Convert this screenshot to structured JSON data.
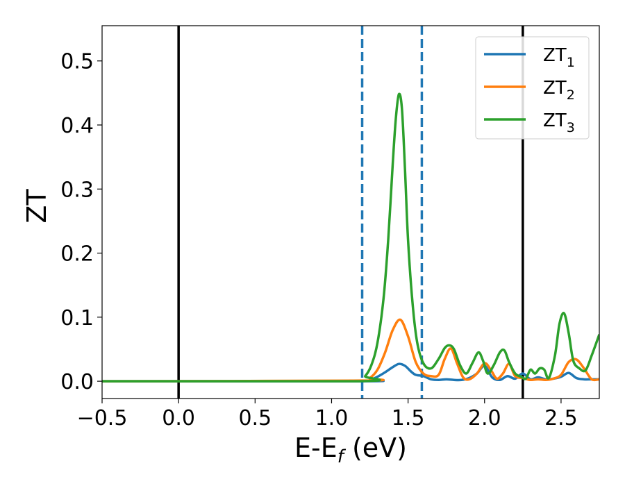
{
  "chart_data": {
    "type": "line",
    "xlabel": "E-E",
    "xlabel_sub": "f",
    "xlabel_units": " (eV)",
    "ylabel": "ZT",
    "xlim": [
      -0.5,
      2.75
    ],
    "ylim": [
      -0.027,
      0.555
    ],
    "xticks": [
      -0.5,
      0.0,
      0.5,
      1.0,
      1.5,
      2.0,
      2.5
    ],
    "xtick_labels": [
      "−0.5",
      "0.0",
      "0.5",
      "1.0",
      "1.5",
      "2.0",
      "2.5"
    ],
    "yticks": [
      0.0,
      0.1,
      0.2,
      0.3,
      0.4,
      0.5
    ],
    "ytick_labels": [
      "0.0",
      "0.1",
      "0.2",
      "0.3",
      "0.4",
      "0.5"
    ],
    "grid": false,
    "legend_position": "top-right",
    "reference_lines": [
      {
        "x": 0.0,
        "style": "solid",
        "color": "#000000"
      },
      {
        "x": 2.25,
        "style": "solid",
        "color": "#000000"
      },
      {
        "x": 1.2,
        "style": "dashed",
        "color": "#1f77b4"
      },
      {
        "x": 1.59,
        "style": "dashed",
        "color": "#1f77b4"
      }
    ],
    "series": [
      {
        "name": "ZT",
        "subscript": "1",
        "color": "#1f77b4",
        "x": [
          -0.5,
          1.2,
          1.25,
          1.3,
          1.35,
          1.4,
          1.44,
          1.48,
          1.52,
          1.55,
          1.6,
          1.65,
          1.7,
          1.75,
          1.8,
          1.85,
          1.9,
          1.95,
          2.0,
          2.05,
          2.1,
          2.15,
          2.2,
          2.25,
          2.3,
          2.35,
          2.4,
          2.45,
          2.5,
          2.55,
          2.6,
          2.65,
          2.7,
          2.75
        ],
        "y": [
          0.0,
          0.0,
          0.002,
          0.007,
          0.014,
          0.022,
          0.027,
          0.024,
          0.015,
          0.01,
          0.008,
          0.003,
          0.002,
          0.003,
          0.002,
          0.002,
          0.005,
          0.012,
          0.024,
          0.006,
          0.002,
          0.008,
          0.004,
          0.012,
          0.003,
          0.006,
          0.003,
          0.004,
          0.007,
          0.013,
          0.005,
          0.003,
          0.003,
          0.003
        ]
      },
      {
        "name": "ZT",
        "subscript": "2",
        "color": "#ff7f0e",
        "x": [
          -0.5,
          1.2,
          1.25,
          1.3,
          1.35,
          1.4,
          1.45,
          1.5,
          1.55,
          1.6,
          1.65,
          1.7,
          1.74,
          1.78,
          1.82,
          1.86,
          1.9,
          1.95,
          2.0,
          2.04,
          2.08,
          2.12,
          2.16,
          2.2,
          2.25,
          2.3,
          2.35,
          2.4,
          2.45,
          2.5,
          2.55,
          2.6,
          2.65,
          2.7,
          2.75
        ],
        "y": [
          0.0,
          0.001,
          0.005,
          0.018,
          0.045,
          0.08,
          0.096,
          0.07,
          0.03,
          0.012,
          0.008,
          0.01,
          0.035,
          0.051,
          0.028,
          0.006,
          0.003,
          0.012,
          0.028,
          0.018,
          0.004,
          0.012,
          0.027,
          0.008,
          0.005,
          0.002,
          0.003,
          0.002,
          0.004,
          0.01,
          0.03,
          0.034,
          0.02,
          0.003,
          0.003
        ]
      },
      {
        "name": "ZT",
        "subscript": "3",
        "color": "#2ca02c",
        "x": [
          -0.5,
          1.18,
          1.22,
          1.26,
          1.3,
          1.34,
          1.37,
          1.4,
          1.42,
          1.44,
          1.46,
          1.48,
          1.5,
          1.53,
          1.56,
          1.6,
          1.65,
          1.7,
          1.74,
          1.77,
          1.8,
          1.84,
          1.88,
          1.92,
          1.96,
          1.99,
          2.02,
          2.06,
          2.1,
          2.13,
          2.16,
          2.2,
          2.24,
          2.27,
          2.3,
          2.33,
          2.36,
          2.39,
          2.42,
          2.46,
          2.49,
          2.52,
          2.55,
          2.58,
          2.62,
          2.66,
          2.7,
          2.75
        ],
        "y": [
          0.0,
          0.0,
          0.008,
          0.025,
          0.06,
          0.13,
          0.22,
          0.34,
          0.41,
          0.448,
          0.425,
          0.33,
          0.22,
          0.12,
          0.06,
          0.028,
          0.02,
          0.035,
          0.052,
          0.056,
          0.05,
          0.025,
          0.012,
          0.028,
          0.045,
          0.032,
          0.012,
          0.025,
          0.045,
          0.048,
          0.03,
          0.012,
          0.007,
          0.004,
          0.018,
          0.012,
          0.02,
          0.018,
          0.005,
          0.04,
          0.09,
          0.106,
          0.075,
          0.032,
          0.02,
          0.017,
          0.04,
          0.073
        ]
      }
    ]
  }
}
